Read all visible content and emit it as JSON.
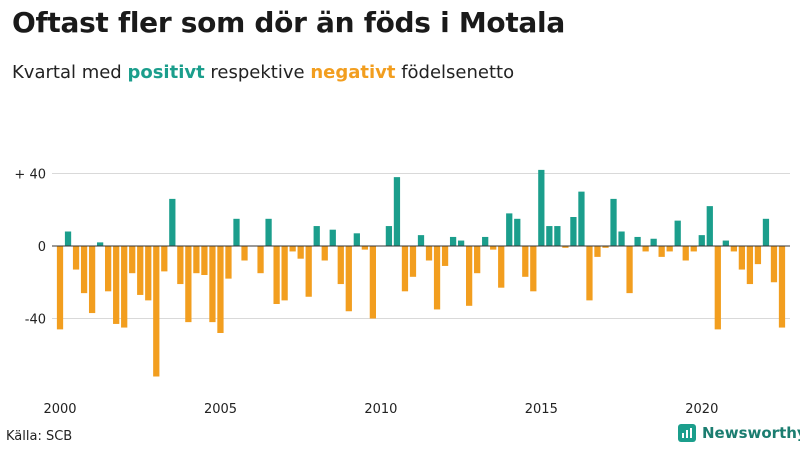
{
  "subtitle": {
    "prefix": "Kvartal med ",
    "positive": "positivt",
    "middle": " respektive ",
    "negative": "negativt",
    "suffix": " födelsenetto"
  },
  "source": "Källa: SCB",
  "logo_text": "Newsworthy",
  "colors": {
    "positive": "#1b9e8c",
    "negative": "#f29e1f",
    "grid": "#d9d9d9",
    "zero": "#333333"
  },
  "chart_data": {
    "type": "bar",
    "title": "Oftast fler som dör än föds i Motala",
    "xlabel": "",
    "ylabel": "",
    "ylim": [
      -72,
      43
    ],
    "yticks": [
      40,
      0,
      -40
    ],
    "ytick_labels": [
      "+ 40",
      "0",
      "-40"
    ],
    "xticks": [
      2000,
      2005,
      2010,
      2015,
      2020
    ],
    "start_year": 2000,
    "quarters_per_year": 4,
    "values": [
      -46,
      8,
      -13,
      -26,
      -37,
      2,
      -25,
      -43,
      -45,
      -15,
      -27,
      -30,
      -72,
      -14,
      26,
      -21,
      -42,
      -15,
      -16,
      -42,
      -48,
      -18,
      15,
      -8,
      0,
      -15,
      15,
      -32,
      -30,
      -3,
      -7,
      -28,
      11,
      -8,
      9,
      -21,
      -36,
      7,
      -2,
      -40,
      0,
      11,
      38,
      -25,
      -17,
      6,
      -8,
      -35,
      -11,
      5,
      3,
      -33,
      -15,
      5,
      -2,
      -23,
      18,
      15,
      -17,
      -25,
      42,
      11,
      11,
      -1,
      16,
      30,
      -30,
      -6,
      -1,
      26,
      8,
      -26,
      5,
      -3,
      4,
      -6,
      -3,
      14,
      -8,
      -3,
      6,
      22,
      -46,
      3,
      -3,
      -13,
      -21,
      -10,
      15,
      -20,
      -45
    ]
  }
}
